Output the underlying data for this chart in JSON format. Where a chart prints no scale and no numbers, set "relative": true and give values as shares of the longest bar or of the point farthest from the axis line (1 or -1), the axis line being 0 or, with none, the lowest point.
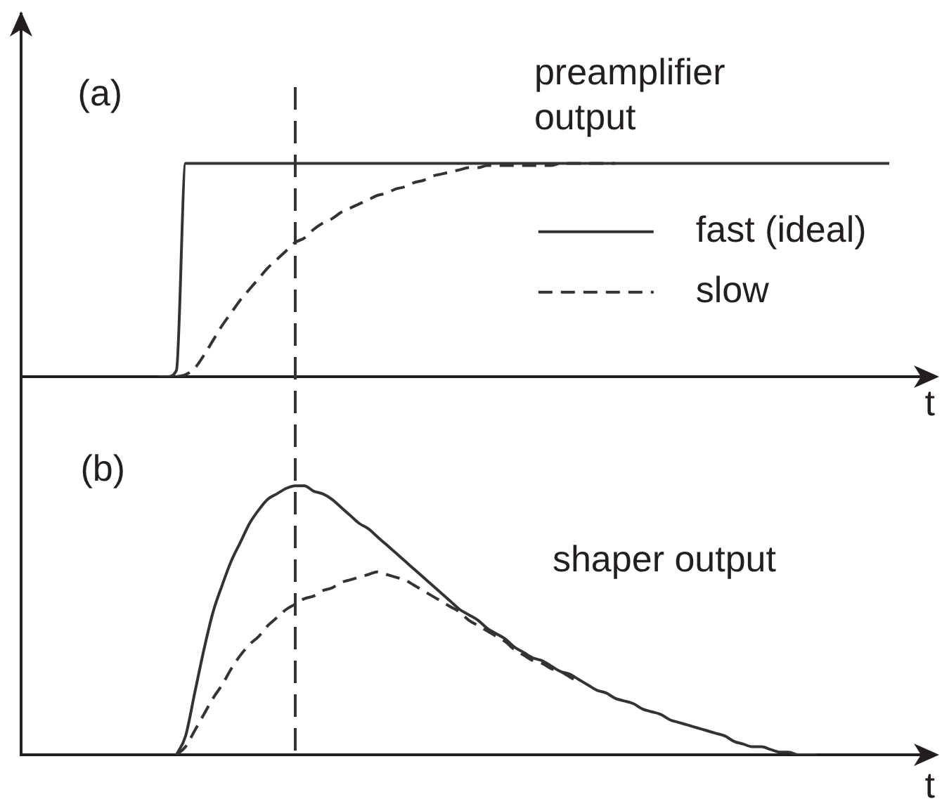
{
  "chart_data": [
    {
      "type": "line",
      "title": "(a)",
      "xlabel": "t",
      "relative": true,
      "legend": "right",
      "categories": [
        null,
        null,
        null,
        null,
        null,
        null,
        null,
        null,
        null,
        null,
        null,
        null,
        null,
        null,
        null,
        null,
        null,
        null,
        null,
        null,
        null,
        null,
        null,
        null,
        null,
        null,
        null,
        null,
        null,
        null,
        null,
        null,
        null,
        null,
        null,
        null,
        null,
        null,
        null,
        null,
        null,
        null,
        null,
        null,
        null,
        null,
        null,
        null,
        null,
        null,
        null,
        null,
        null,
        null,
        null,
        null,
        null,
        null,
        null,
        null,
        null,
        null,
        null,
        null,
        null,
        null,
        null,
        null,
        null,
        null,
        null,
        null,
        null,
        null,
        null,
        null,
        null,
        null,
        null,
        null,
        null,
        null,
        null,
        null,
        null,
        null,
        null,
        null,
        null,
        null,
        null,
        null,
        null,
        null,
        null,
        null,
        null,
        null,
        null,
        null,
        null
      ],
      "series": [
        {
          "name": "fast (ideal)",
          "color": "#333333",
          "line_style": "solid",
          "values": [
            null,
            null,
            null,
            null,
            null,
            null,
            null,
            null,
            null,
            null,
            null,
            null,
            null,
            null,
            null,
            0,
            0,
            0.03,
            1,
            1,
            1,
            1,
            1,
            1,
            1,
            1,
            1,
            1,
            1,
            1,
            1,
            1,
            1,
            1,
            1,
            1,
            1,
            1,
            1,
            1,
            1,
            1,
            1,
            1,
            1,
            1,
            1,
            1,
            1,
            1,
            1,
            1,
            1,
            1,
            1,
            1,
            1,
            1,
            1,
            1,
            1,
            1,
            1,
            1,
            1,
            1,
            1,
            1,
            1,
            1,
            1,
            1,
            1,
            1,
            1,
            1,
            1,
            1,
            1,
            1,
            1,
            1,
            1,
            1,
            1,
            1,
            1,
            1,
            1,
            1,
            1,
            1,
            1,
            1,
            1,
            1,
            null,
            null,
            null,
            null,
            null
          ]
        },
        {
          "name": "slow",
          "color": "#333333",
          "line_style": "dashed",
          "values": [
            null,
            null,
            null,
            null,
            null,
            null,
            null,
            null,
            null,
            null,
            null,
            null,
            null,
            null,
            null,
            null,
            null,
            0,
            0.01,
            0.04,
            0.1,
            0.17,
            0.24,
            0.3,
            0.36,
            0.41,
            0.46,
            0.51,
            0.55,
            0.59,
            0.63,
            0.65,
            0.69,
            0.72,
            0.74,
            0.77,
            0.79,
            0.81,
            0.83,
            0.85,
            0.86,
            0.88,
            0.89,
            0.91,
            0.92,
            0.94,
            0.95,
            0.96,
            0.97,
            0.98,
            0.98,
            0.99,
            0.99,
            0.99,
            0.99,
            0.99,
            0.99,
            0.99,
            0.99,
            1,
            1,
            1,
            1,
            1,
            1,
            1,
            null,
            null,
            null,
            null,
            null,
            null,
            null,
            null,
            null,
            null,
            null,
            null,
            null,
            null,
            null,
            null,
            null,
            null,
            null,
            null,
            null,
            null,
            null,
            null,
            null,
            null,
            null,
            null,
            null,
            null,
            null,
            null,
            null,
            null,
            null
          ]
        }
      ],
      "annotations": [
        "preamplifier output"
      ]
    },
    {
      "type": "line",
      "title": "(b)",
      "xlabel": "t",
      "relative": true,
      "categories": [
        null,
        null,
        null,
        null,
        null,
        null,
        null,
        null,
        null,
        null,
        null,
        null,
        null,
        null,
        null,
        null,
        null,
        null,
        null,
        null,
        null,
        null,
        null,
        null,
        null,
        null,
        null,
        null,
        null,
        null,
        null,
        null,
        null,
        null,
        null,
        null,
        null,
        null,
        null,
        null,
        null,
        null,
        null,
        null,
        null,
        null,
        null,
        null,
        null,
        null,
        null,
        null,
        null,
        null,
        null,
        null,
        null,
        null,
        null,
        null,
        null,
        null,
        null,
        null,
        null,
        null,
        null,
        null,
        null,
        null,
        null,
        null,
        null,
        null,
        null,
        null,
        null,
        null,
        null,
        null,
        null,
        null,
        null,
        null,
        null,
        null,
        null,
        null,
        null,
        null,
        null,
        null,
        null,
        null,
        null,
        null,
        null,
        null,
        null,
        null,
        null
      ],
      "series": [
        {
          "color": "#333333",
          "line_style": "solid",
          "values": [
            null,
            null,
            null,
            null,
            null,
            null,
            null,
            null,
            null,
            null,
            null,
            null,
            null,
            null,
            null,
            null,
            null,
            0,
            0.07,
            0.23,
            0.39,
            0.53,
            0.63,
            0.72,
            0.79,
            0.86,
            0.91,
            0.95,
            0.97,
            0.99,
            1,
            1,
            0.98,
            0.97,
            0.95,
            0.92,
            0.89,
            0.86,
            0.84,
            0.81,
            0.78,
            0.75,
            0.72,
            0.69,
            0.66,
            0.63,
            0.6,
            0.57,
            0.54,
            0.52,
            0.5,
            0.47,
            0.45,
            0.43,
            0.4,
            0.38,
            0.36,
            0.35,
            0.33,
            0.31,
            0.3,
            0.28,
            0.26,
            0.24,
            0.23,
            0.21,
            0.2,
            0.19,
            0.17,
            0.16,
            0.15,
            0.13,
            0.12,
            0.11,
            0.1,
            0.09,
            0.08,
            0.07,
            0.05,
            0.04,
            0.03,
            0.03,
            0.02,
            0.01,
            0.01,
            0,
            0,
            0,
            null,
            null,
            null,
            null,
            null,
            null,
            null,
            null,
            null,
            null,
            null,
            null,
            null
          ]
        },
        {
          "color": "#333333",
          "line_style": "dashed",
          "values": [
            null,
            null,
            null,
            null,
            null,
            null,
            null,
            null,
            null,
            null,
            null,
            null,
            null,
            null,
            null,
            null,
            null,
            0,
            0.03,
            0.09,
            0.15,
            0.21,
            0.26,
            0.32,
            0.37,
            0.41,
            0.44,
            0.48,
            0.51,
            0.54,
            0.56,
            0.58,
            0.59,
            0.61,
            0.62,
            0.64,
            0.65,
            0.66,
            0.67,
            0.68,
            0.67,
            0.66,
            0.65,
            0.63,
            0.61,
            0.59,
            0.57,
            0.55,
            0.53,
            0.5,
            0.48,
            0.46,
            0.44,
            0.42,
            0.39,
            0.37,
            0.35,
            0.34,
            0.32,
            0.31,
            0.29,
            0.27,
            null,
            null,
            null,
            null,
            null,
            null,
            null,
            null,
            null,
            null,
            null,
            null,
            null,
            null,
            null,
            null,
            null,
            null,
            null,
            null,
            null,
            null,
            null,
            null,
            null,
            null,
            null,
            null,
            null,
            null,
            null,
            null,
            null,
            null,
            null,
            null,
            null,
            null,
            null
          ]
        }
      ],
      "annotations": [
        "shaper output"
      ]
    }
  ]
}
